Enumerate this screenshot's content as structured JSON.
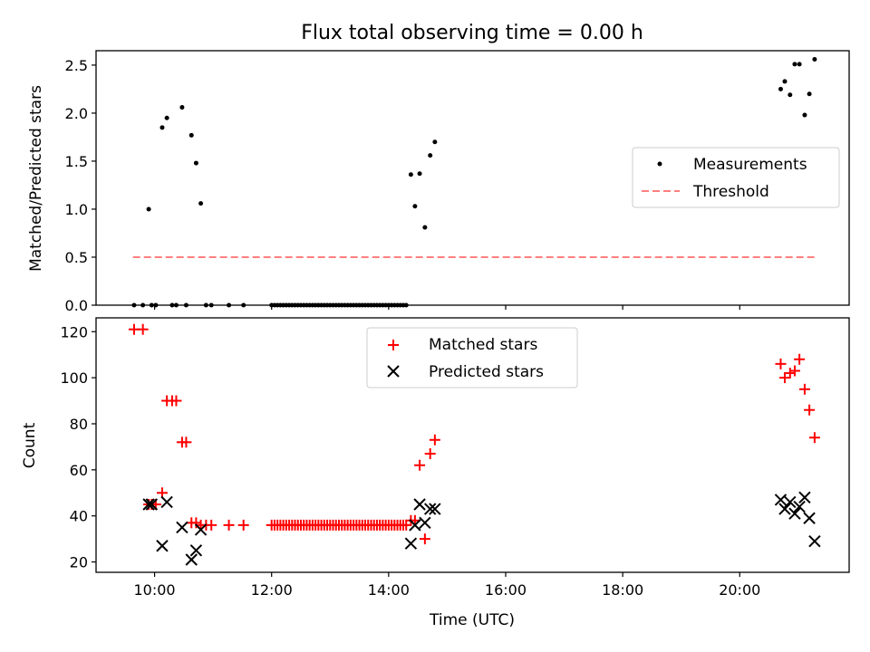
{
  "title": "Flux total observing time = 0.00 h",
  "x_axis": {
    "label": "Time (UTC)",
    "ticks": [
      "10:00",
      "12:00",
      "14:00",
      "16:00",
      "18:00",
      "20:00"
    ]
  },
  "colors": {
    "measurements": "#000000",
    "threshold": "#ff7f7f",
    "matched": "#ff0000",
    "predicted": "#000000"
  },
  "chart_data": [
    {
      "type": "scatter",
      "ylabel": "Matched/Predicted stars",
      "xlim": [
        9.0,
        21.87
      ],
      "ylim": [
        0,
        2.65
      ],
      "yticks": [
        "0.0",
        "0.5",
        "1.0",
        "1.5",
        "2.0",
        "2.5"
      ],
      "legend_position": "center-right",
      "legend": [
        "Measurements",
        "Threshold"
      ],
      "threshold": {
        "y": 0.5,
        "x": [
          9.63,
          21.3
        ]
      },
      "series": [
        {
          "name": "Measurements",
          "points": [
            [
              9.65,
              0.0
            ],
            [
              9.8,
              0.0
            ],
            [
              9.9,
              1.0
            ],
            [
              9.95,
              0.0
            ],
            [
              10.02,
              0.0
            ],
            [
              10.13,
              1.85
            ],
            [
              10.21,
              1.95
            ],
            [
              10.3,
              0.0
            ],
            [
              10.37,
              0.0
            ],
            [
              10.47,
              2.06
            ],
            [
              10.54,
              0.0
            ],
            [
              10.63,
              1.77
            ],
            [
              10.71,
              1.48
            ],
            [
              10.79,
              1.06
            ],
            [
              10.88,
              0.0
            ],
            [
              10.97,
              0.0
            ],
            [
              11.27,
              0.0
            ],
            [
              11.52,
              0.0
            ],
            [
              12.0,
              0.0
            ],
            [
              12.05,
              0.0
            ],
            [
              12.1,
              0.0
            ],
            [
              12.15,
              0.0
            ],
            [
              12.2,
              0.0
            ],
            [
              12.25,
              0.0
            ],
            [
              12.3,
              0.0
            ],
            [
              12.35,
              0.0
            ],
            [
              12.4,
              0.0
            ],
            [
              12.45,
              0.0
            ],
            [
              12.5,
              0.0
            ],
            [
              12.55,
              0.0
            ],
            [
              12.6,
              0.0
            ],
            [
              12.65,
              0.0
            ],
            [
              12.7,
              0.0
            ],
            [
              12.75,
              0.0
            ],
            [
              12.8,
              0.0
            ],
            [
              12.85,
              0.0
            ],
            [
              12.9,
              0.0
            ],
            [
              12.95,
              0.0
            ],
            [
              13.0,
              0.0
            ],
            [
              13.05,
              0.0
            ],
            [
              13.1,
              0.0
            ],
            [
              13.15,
              0.0
            ],
            [
              13.2,
              0.0
            ],
            [
              13.25,
              0.0
            ],
            [
              13.3,
              0.0
            ],
            [
              13.35,
              0.0
            ],
            [
              13.4,
              0.0
            ],
            [
              13.45,
              0.0
            ],
            [
              13.5,
              0.0
            ],
            [
              13.55,
              0.0
            ],
            [
              13.6,
              0.0
            ],
            [
              13.65,
              0.0
            ],
            [
              13.7,
              0.0
            ],
            [
              13.75,
              0.0
            ],
            [
              13.8,
              0.0
            ],
            [
              13.85,
              0.0
            ],
            [
              13.9,
              0.0
            ],
            [
              13.95,
              0.0
            ],
            [
              14.0,
              0.0
            ],
            [
              14.05,
              0.0
            ],
            [
              14.1,
              0.0
            ],
            [
              14.15,
              0.0
            ],
            [
              14.2,
              0.0
            ],
            [
              14.25,
              0.0
            ],
            [
              14.3,
              0.0
            ],
            [
              14.38,
              1.36
            ],
            [
              14.45,
              1.03
            ],
            [
              14.53,
              1.37
            ],
            [
              14.62,
              0.81
            ],
            [
              14.71,
              1.56
            ],
            [
              14.79,
              1.7
            ],
            [
              20.7,
              2.25
            ],
            [
              20.77,
              2.33
            ],
            [
              20.86,
              2.19
            ],
            [
              20.94,
              2.51
            ],
            [
              21.02,
              2.51
            ],
            [
              21.11,
              1.98
            ],
            [
              21.19,
              2.2
            ],
            [
              21.28,
              2.56
            ]
          ]
        }
      ]
    },
    {
      "type": "scatter",
      "ylabel": "Count",
      "xlim": [
        9.0,
        21.87
      ],
      "ylim": [
        15.5,
        126
      ],
      "yticks": [
        "20",
        "40",
        "60",
        "80",
        "100",
        "120"
      ],
      "legend_position": "top-center",
      "legend": [
        "Matched stars",
        "Predicted stars"
      ],
      "series": [
        {
          "name": "Matched stars",
          "points": [
            [
              9.65,
              121
            ],
            [
              9.8,
              121
            ],
            [
              9.9,
              45
            ],
            [
              9.95,
              45
            ],
            [
              10.02,
              45
            ],
            [
              10.13,
              50
            ],
            [
              10.21,
              90
            ],
            [
              10.3,
              90
            ],
            [
              10.37,
              90
            ],
            [
              10.47,
              72
            ],
            [
              10.54,
              72
            ],
            [
              10.63,
              37
            ],
            [
              10.71,
              37
            ],
            [
              10.79,
              36
            ],
            [
              10.88,
              36
            ],
            [
              10.97,
              36
            ],
            [
              11.27,
              36
            ],
            [
              11.52,
              36
            ],
            [
              12.0,
              36
            ],
            [
              12.05,
              36
            ],
            [
              12.1,
              36
            ],
            [
              12.15,
              36
            ],
            [
              12.2,
              36
            ],
            [
              12.25,
              36
            ],
            [
              12.3,
              36
            ],
            [
              12.35,
              36
            ],
            [
              12.4,
              36
            ],
            [
              12.45,
              36
            ],
            [
              12.5,
              36
            ],
            [
              12.55,
              36
            ],
            [
              12.6,
              36
            ],
            [
              12.65,
              36
            ],
            [
              12.7,
              36
            ],
            [
              12.75,
              36
            ],
            [
              12.8,
              36
            ],
            [
              12.85,
              36
            ],
            [
              12.9,
              36
            ],
            [
              12.95,
              36
            ],
            [
              13.0,
              36
            ],
            [
              13.05,
              36
            ],
            [
              13.1,
              36
            ],
            [
              13.15,
              36
            ],
            [
              13.2,
              36
            ],
            [
              13.25,
              36
            ],
            [
              13.3,
              36
            ],
            [
              13.35,
              36
            ],
            [
              13.4,
              36
            ],
            [
              13.45,
              36
            ],
            [
              13.5,
              36
            ],
            [
              13.55,
              36
            ],
            [
              13.6,
              36
            ],
            [
              13.65,
              36
            ],
            [
              13.7,
              36
            ],
            [
              13.75,
              36
            ],
            [
              13.8,
              36
            ],
            [
              13.85,
              36
            ],
            [
              13.9,
              36
            ],
            [
              13.95,
              36
            ],
            [
              14.0,
              36
            ],
            [
              14.05,
              36
            ],
            [
              14.1,
              36
            ],
            [
              14.15,
              36
            ],
            [
              14.2,
              36
            ],
            [
              14.25,
              36
            ],
            [
              14.3,
              36
            ],
            [
              14.38,
              38
            ],
            [
              14.45,
              38
            ],
            [
              14.53,
              62
            ],
            [
              14.62,
              30
            ],
            [
              14.71,
              67
            ],
            [
              14.79,
              73
            ],
            [
              20.7,
              106
            ],
            [
              20.77,
              100
            ],
            [
              20.86,
              102
            ],
            [
              20.94,
              103
            ],
            [
              21.02,
              108
            ],
            [
              21.11,
              95
            ],
            [
              21.19,
              86
            ],
            [
              21.28,
              74
            ]
          ]
        },
        {
          "name": "Predicted stars",
          "points": [
            [
              9.9,
              45
            ],
            [
              9.95,
              45
            ],
            [
              10.13,
              27
            ],
            [
              10.21,
              46
            ],
            [
              10.47,
              35
            ],
            [
              10.63,
              21
            ],
            [
              10.71,
              25
            ],
            [
              10.79,
              34
            ],
            [
              14.38,
              28
            ],
            [
              14.45,
              36
            ],
            [
              14.53,
              45
            ],
            [
              14.62,
              37
            ],
            [
              14.71,
              43
            ],
            [
              14.79,
              43
            ],
            [
              20.7,
              47
            ],
            [
              20.77,
              43
            ],
            [
              20.86,
              46
            ],
            [
              20.94,
              41
            ],
            [
              21.02,
              44
            ],
            [
              21.11,
              48
            ],
            [
              21.19,
              39
            ],
            [
              21.28,
              29
            ]
          ]
        }
      ]
    }
  ]
}
